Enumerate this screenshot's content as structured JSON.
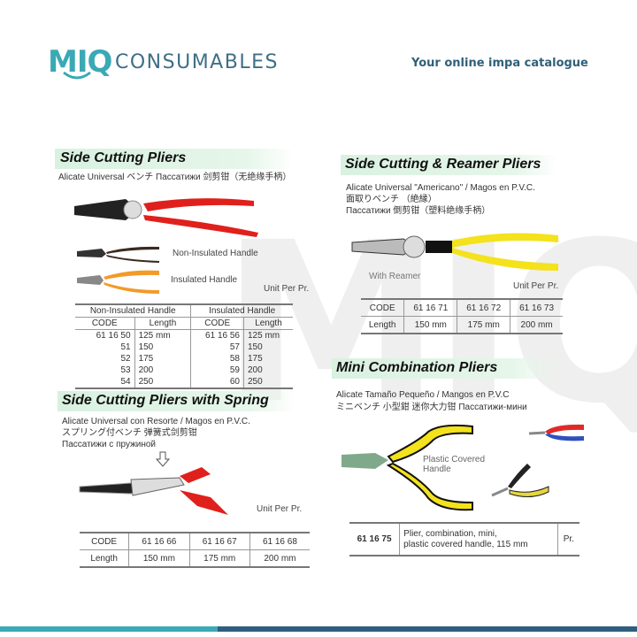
{
  "header": {
    "logo_mark": "MIQ",
    "logo_text": "CONSUMABLES",
    "tagline": "Your online impa catalogue",
    "brand_teal": "#3aa9b5",
    "brand_navy": "#2f5e80"
  },
  "watermark": "MIQ",
  "side_cutting": {
    "title": "Side Cutting Pliers",
    "subtitle": "Alicate Universal  ベンチ  Пассатижи  剑剪钳（无绝缘手柄）",
    "label_non_insulated": "Non-Insulated Handle",
    "label_insulated": "Insulated Handle",
    "unit": "Unit Per Pr.",
    "table": {
      "group_headers": [
        "Non-Insulated Handle",
        "Insulated Handle"
      ],
      "col_headers": [
        "CODE",
        "Length",
        "CODE",
        "Length"
      ],
      "rows": [
        [
          "61 16 50",
          "125 mm",
          "61 16 56",
          "125 mm"
        ],
        [
          "51",
          "150",
          "57",
          "150"
        ],
        [
          "52",
          "175",
          "58",
          "175"
        ],
        [
          "53",
          "200",
          "59",
          "200"
        ],
        [
          "54",
          "250",
          "60",
          "250"
        ]
      ]
    }
  },
  "reamer": {
    "title": "Side Cutting & Reamer Pliers",
    "subtitle_lines": [
      "Alicate Universal \"Americano\" / Magos en P.V.C.",
      "面取りベンチ                （絶縁）",
      "Пассатижи   倒剪钳（塑料绝缘手柄）"
    ],
    "label_reamer": "With Reamer",
    "unit": "Unit Per Pr.",
    "table": {
      "code_label": "CODE",
      "length_label": "Length",
      "codes": [
        "61 16 71",
        "61 16 72",
        "61 16 73"
      ],
      "lengths": [
        "150 mm",
        "175 mm",
        "200 mm"
      ]
    }
  },
  "mini": {
    "title": "Mini Combination Pliers",
    "subtitle_lines": [
      "Alicate Tamaño Pequeño / Mangos en P.V.C",
      "ミニベンチ   小型鉗   迷你大力钳     Пассатижи-мини"
    ],
    "label_handle": [
      "Plastic Covered",
      "Handle"
    ],
    "table": {
      "code": "61 16 75",
      "description": [
        "Plier, combination, mini,",
        "plastic covered handle, 115 mm"
      ],
      "unit": "Pr."
    }
  },
  "spring": {
    "title": "Side Cutting Pliers with Spring",
    "subtitle_lines": [
      "Alicate Universal con Resorte / Magos en P.V.C.",
      "スプリング付ベンチ     弹簧式剑剪钳",
      "Пассатижи с пружиной"
    ],
    "unit": "Unit Per Pr.",
    "table": {
      "code_label": "CODE",
      "length_label": "Length",
      "codes": [
        "61 16 66",
        "61 16 67",
        "61 16 68"
      ],
      "lengths": [
        "150 mm",
        "175 mm",
        "200 mm"
      ]
    }
  }
}
